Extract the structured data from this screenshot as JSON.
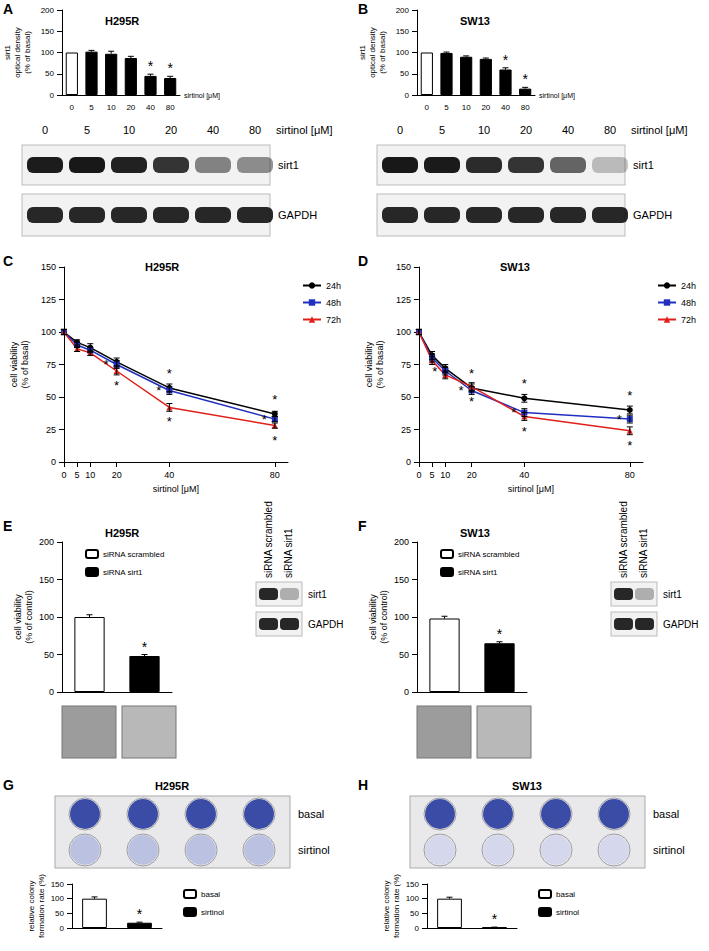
{
  "chart_data": [
    {
      "panel": "A",
      "type": "bar",
      "title": "H295R",
      "y_label": [
        "sirt1",
        "optical density",
        "(% of basal)"
      ],
      "x_label": "sirtinol [μM]",
      "categories": [
        "0",
        "5",
        "10",
        "20",
        "40",
        "80"
      ],
      "values": [
        100,
        102,
        97,
        87,
        45,
        40
      ],
      "errors": [
        0,
        3,
        6,
        4,
        4,
        4
      ],
      "colors": [
        "#ffffff",
        "#000000",
        "#000000",
        "#000000",
        "#000000",
        "#000000"
      ],
      "ylim": [
        0,
        200
      ],
      "yticks": [
        0,
        50,
        100,
        150,
        200
      ],
      "grid": false,
      "significant": [
        false,
        false,
        false,
        false,
        true,
        true
      ],
      "significance_mark": "*",
      "blot": {
        "lane_title": "sirtinol [μM]",
        "lanes": [
          "0",
          "5",
          "10",
          "20",
          "40",
          "80"
        ],
        "rows": [
          "sirt1",
          "GAPDH"
        ]
      }
    },
    {
      "panel": "B",
      "type": "bar",
      "title": "SW13",
      "y_label": [
        "sirt1",
        "optical density",
        "(% of basal)"
      ],
      "x_label": "sirtinol [μM]",
      "categories": [
        "0",
        "5",
        "10",
        "20",
        "40",
        "80"
      ],
      "values": [
        100,
        99,
        90,
        85,
        60,
        15
      ],
      "errors": [
        0,
        2,
        2,
        2,
        4,
        3
      ],
      "colors": [
        "#ffffff",
        "#000000",
        "#000000",
        "#000000",
        "#000000",
        "#000000"
      ],
      "ylim": [
        0,
        200
      ],
      "yticks": [
        0,
        50,
        100,
        150,
        200
      ],
      "grid": false,
      "significant": [
        false,
        false,
        false,
        false,
        true,
        true
      ],
      "significance_mark": "*",
      "blot": {
        "lane_title": "sirtinol [μM]",
        "lanes": [
          "0",
          "5",
          "10",
          "20",
          "40",
          "80"
        ],
        "rows": [
          "sirt1",
          "GAPDH"
        ]
      }
    },
    {
      "panel": "C",
      "type": "line",
      "title": "H295R",
      "y_label": [
        "cell viability",
        "(% of basal)"
      ],
      "x_label": "sirtinol [μM]",
      "x": [
        0,
        5,
        10,
        20,
        40,
        80
      ],
      "xlim": [
        0,
        85
      ],
      "xticks": [
        0,
        5,
        10,
        20,
        40,
        80
      ],
      "ylim": [
        0,
        150
      ],
      "yticks": [
        0,
        25,
        50,
        75,
        100,
        125,
        150
      ],
      "grid": false,
      "legend": "top-right",
      "significance_mark": "*",
      "series": [
        {
          "name": "24h",
          "color": "#000000",
          "marker": "circle",
          "values": [
            100,
            92,
            88,
            77,
            57,
            37
          ],
          "errors": [
            2,
            2,
            3,
            3,
            3,
            2
          ],
          "significant": [
            false,
            false,
            false,
            false,
            true,
            true
          ]
        },
        {
          "name": "48h",
          "color": "#1f2fbf",
          "marker": "square",
          "values": [
            100,
            90,
            86,
            75,
            55,
            33
          ],
          "errors": [
            2,
            2,
            2,
            3,
            3,
            2
          ],
          "significant": [
            false,
            false,
            false,
            true,
            true,
            true
          ]
        },
        {
          "name": "72h",
          "color": "#e0201b",
          "marker": "triangle",
          "values": [
            100,
            87,
            84,
            70,
            42,
            28
          ],
          "errors": [
            2,
            2,
            2,
            3,
            3,
            2
          ],
          "significant": [
            false,
            false,
            false,
            true,
            true,
            true
          ]
        }
      ]
    },
    {
      "panel": "D",
      "type": "line",
      "title": "SW13",
      "y_label": [
        "cell viability",
        "(% of basal)"
      ],
      "x_label": "sirtinol [μM]",
      "x": [
        0,
        5,
        10,
        20,
        40,
        80
      ],
      "xlim": [
        0,
        85
      ],
      "xticks": [
        0,
        5,
        10,
        20,
        40,
        80
      ],
      "ylim": [
        0,
        150
      ],
      "yticks": [
        0,
        25,
        50,
        75,
        100,
        125,
        150
      ],
      "grid": false,
      "legend": "top-right",
      "significance_mark": "*",
      "series": [
        {
          "name": "24h",
          "color": "#000000",
          "marker": "circle",
          "values": [
            100,
            82,
            72,
            57,
            49,
            40
          ],
          "errors": [
            2,
            3,
            3,
            3,
            3,
            3
          ],
          "significant": [
            false,
            false,
            false,
            true,
            true,
            true
          ]
        },
        {
          "name": "48h",
          "color": "#1f2fbf",
          "marker": "square",
          "values": [
            100,
            80,
            70,
            55,
            38,
            33
          ],
          "errors": [
            2,
            3,
            3,
            3,
            3,
            3
          ],
          "significant": [
            false,
            false,
            true,
            true,
            true,
            true
          ]
        },
        {
          "name": "72h",
          "color": "#e0201b",
          "marker": "triangle",
          "values": [
            100,
            78,
            67,
            58,
            35,
            24
          ],
          "errors": [
            2,
            3,
            3,
            3,
            3,
            3
          ],
          "significant": [
            false,
            false,
            false,
            true,
            true,
            true
          ]
        }
      ]
    },
    {
      "panel": "E",
      "type": "bar",
      "title": "H295R",
      "y_label": [
        "cell viability",
        "(% of control)"
      ],
      "legend": "top-left",
      "ylim": [
        0,
        200
      ],
      "yticks": [
        0,
        50,
        100,
        150,
        200
      ],
      "grid": false,
      "significance_mark": "*",
      "series": [
        {
          "name": "siRNA scrambled",
          "color": "#ffffff",
          "value": 100,
          "error": 3
        },
        {
          "name": "siRNA sirt1",
          "color": "#000000",
          "value": 48,
          "error": 2
        }
      ],
      "significant": [
        false,
        true
      ],
      "blot": {
        "lanes": [
          "siRNA scrambled",
          "siRNA sirt1"
        ],
        "rows": [
          "sirt1",
          "GAPDH"
        ]
      }
    },
    {
      "panel": "F",
      "type": "bar",
      "title": "SW13",
      "y_label": [
        "cell viability",
        "(% of control)"
      ],
      "legend": "top-left",
      "ylim": [
        0,
        200
      ],
      "yticks": [
        0,
        50,
        100,
        150,
        200
      ],
      "grid": false,
      "significance_mark": "*",
      "series": [
        {
          "name": "siRNA scrambled",
          "color": "#ffffff",
          "value": 98,
          "error": 3
        },
        {
          "name": "siRNA sirt1",
          "color": "#000000",
          "value": 65,
          "error": 2
        }
      ],
      "significant": [
        false,
        true
      ],
      "blot": {
        "lanes": [
          "siRNA scrambled",
          "siRNA sirt1"
        ],
        "rows": [
          "sirt1",
          "GAPDH"
        ]
      }
    },
    {
      "panel": "G",
      "type": "bar",
      "title": "H295R",
      "y_label": [
        "relative colony",
        "formation rate (%)"
      ],
      "legend": "top-right",
      "ylim": [
        0,
        150
      ],
      "yticks": [
        0,
        50,
        100,
        150
      ],
      "grid": false,
      "significance_mark": "*",
      "series": [
        {
          "name": "basal",
          "color": "#ffffff",
          "value": 100,
          "error": 6
        },
        {
          "name": "sirtinol",
          "color": "#000000",
          "value": 18,
          "error": 2
        }
      ],
      "significant": [
        false,
        true
      ],
      "plate": {
        "rows": [
          "basal",
          "sirtinol"
        ]
      }
    },
    {
      "panel": "H",
      "type": "bar",
      "title": "SW13",
      "y_label": [
        "relative colony",
        "formation rate (%)"
      ],
      "legend": "top-right",
      "ylim": [
        0,
        150
      ],
      "yticks": [
        0,
        50,
        100,
        150
      ],
      "grid": false,
      "significance_mark": "*",
      "series": [
        {
          "name": "basal",
          "color": "#ffffff",
          "value": 100,
          "error": 5
        },
        {
          "name": "sirtinol",
          "color": "#000000",
          "value": 2,
          "error": 1
        }
      ],
      "significant": [
        false,
        true
      ],
      "plate": {
        "rows": [
          "basal",
          "sirtinol"
        ]
      }
    }
  ]
}
